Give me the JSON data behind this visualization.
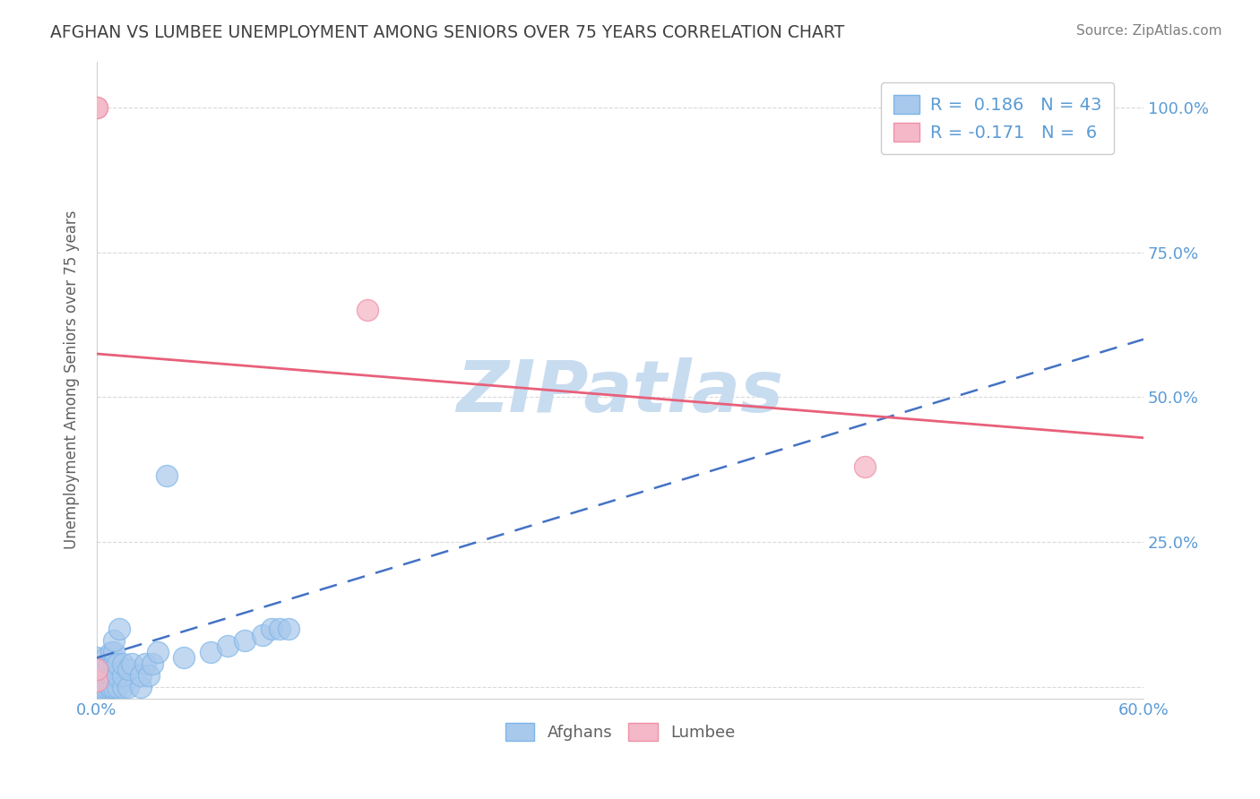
{
  "title": "AFGHAN VS LUMBEE UNEMPLOYMENT AMONG SENIORS OVER 75 YEARS CORRELATION CHART",
  "source": "Source: ZipAtlas.com",
  "ylabel_label": "Unemployment Among Seniors over 75 years",
  "xlim": [
    0.0,
    0.6
  ],
  "ylim": [
    -0.02,
    1.08
  ],
  "ytick_positions": [
    0.0,
    0.25,
    0.5,
    0.75,
    1.0
  ],
  "ytick_labels": [
    "",
    "25.0%",
    "50.0%",
    "75.0%",
    "100.0%"
  ],
  "xtick_positions": [
    0.0,
    0.12,
    0.24,
    0.36,
    0.48,
    0.6
  ],
  "xtick_labels": [
    "0.0%",
    "",
    "",
    "",
    "",
    "60.0%"
  ],
  "afghan_color": "#A8C8EC",
  "afghan_edge_color": "#7EB6E8",
  "lumbee_color": "#F4B8C8",
  "lumbee_edge_color": "#F090A8",
  "afghan_trend_color": "#4472C4",
  "lumbee_trend_color": "#E8607A",
  "title_color": "#404040",
  "axis_label_color": "#606060",
  "tick_color": "#5B9BD5",
  "grid_color": "#D0D0D0",
  "watermark_color": "#C8DCF0",
  "legend_r_afghan": "R =  0.186",
  "legend_n_afghan": "N = 43",
  "legend_r_lumbee": "R = -0.171",
  "legend_n_lumbee": "N =  6",
  "afghan_points_x": [
    0.0,
    0.0,
    0.0,
    0.003,
    0.003,
    0.005,
    0.005,
    0.007,
    0.007,
    0.007,
    0.008,
    0.008,
    0.008,
    0.01,
    0.01,
    0.01,
    0.01,
    0.01,
    0.012,
    0.012,
    0.012,
    0.013,
    0.015,
    0.015,
    0.015,
    0.018,
    0.018,
    0.02,
    0.025,
    0.025,
    0.028,
    0.03,
    0.032,
    0.035,
    0.04,
    0.05,
    0.065,
    0.075,
    0.085,
    0.095,
    0.1,
    0.105,
    0.11
  ],
  "afghan_points_y": [
    0.0,
    0.02,
    0.05,
    0.0,
    0.03,
    0.0,
    0.05,
    0.0,
    0.02,
    0.04,
    0.0,
    0.02,
    0.06,
    0.0,
    0.02,
    0.04,
    0.06,
    0.08,
    0.0,
    0.02,
    0.04,
    0.1,
    0.0,
    0.02,
    0.04,
    0.0,
    0.03,
    0.04,
    0.0,
    0.02,
    0.04,
    0.02,
    0.04,
    0.06,
    0.365,
    0.05,
    0.06,
    0.07,
    0.08,
    0.09,
    0.1,
    0.1,
    0.1
  ],
  "lumbee_points_x": [
    0.0,
    0.0,
    0.0,
    0.0,
    0.155,
    0.44
  ],
  "lumbee_points_y": [
    1.0,
    1.0,
    0.01,
    0.03,
    0.65,
    0.38
  ],
  "afghan_trend_x": [
    0.0,
    0.6
  ],
  "afghan_trend_y_start": 0.05,
  "afghan_trend_y_end": 0.6,
  "lumbee_trend_x": [
    0.0,
    0.6
  ],
  "lumbee_trend_y_start": 0.575,
  "lumbee_trend_y_end": 0.43
}
